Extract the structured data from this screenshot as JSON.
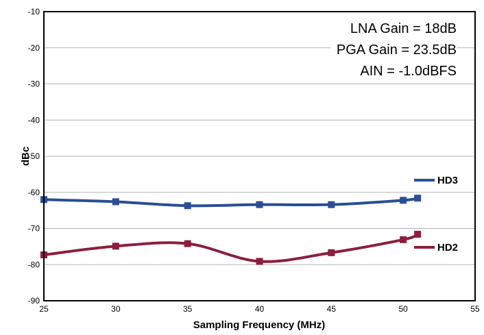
{
  "chart_data": {
    "type": "line",
    "xlabel": "Sampling Frequency (MHz)",
    "ylabel": "dBc",
    "xlim": [
      25,
      55
    ],
    "ylim": [
      -90,
      -10
    ],
    "xticks": [
      25,
      30,
      35,
      40,
      45,
      50,
      55
    ],
    "yticks": [
      -10,
      -20,
      -30,
      -40,
      -50,
      -60,
      -70,
      -80,
      -90
    ],
    "grid": "horizontal",
    "annotations": [
      "LNA Gain = 18dB",
      "PGA Gain = 23.5dB",
      "AIN = -1.0dBFS"
    ],
    "series": [
      {
        "name": "HD3",
        "color": "#2a4e96",
        "marker": "square",
        "x": [
          25,
          30,
          35,
          40,
          45,
          50,
          51
        ],
        "y": [
          -62.0,
          -62.6,
          -63.7,
          -63.4,
          -63.4,
          -62.2,
          -61.6
        ]
      },
      {
        "name": "HD2",
        "color": "#8c1e3c",
        "marker": "square",
        "x": [
          25,
          30,
          35,
          40,
          45,
          50,
          51
        ],
        "y": [
          -77.3,
          -74.9,
          -74.2,
          -79.1,
          -76.7,
          -73.1,
          -71.6
        ]
      }
    ]
  }
}
